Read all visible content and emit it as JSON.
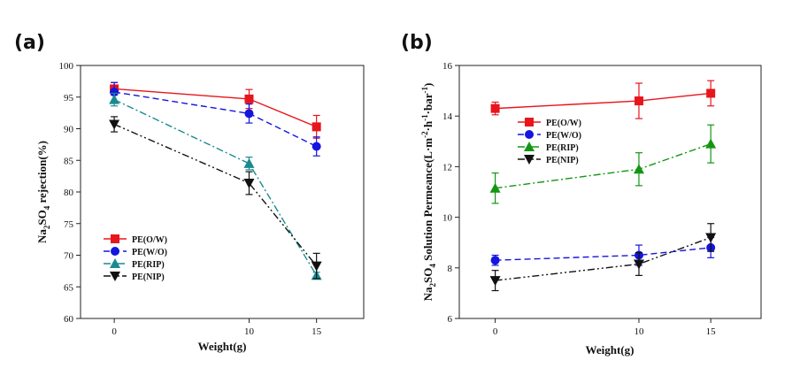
{
  "chart_data": [
    {
      "type": "line",
      "panel": "(a)",
      "title": "",
      "xlabel": "Weight(g)",
      "ylabel": "Na2SO4 rejection(%)",
      "ylabel_parts": {
        "pre": "Na",
        "sub1": "2",
        "mid": "SO",
        "sub2": "4",
        "post": " rejection(%)"
      },
      "x": [
        0,
        10,
        15
      ],
      "xticks": [
        0,
        10,
        15
      ],
      "xlim": [
        -2.5,
        18.5
      ],
      "ylim": [
        60,
        100
      ],
      "yticks": [
        60,
        65,
        70,
        75,
        80,
        85,
        90,
        95,
        100
      ],
      "grid": false,
      "legend_position": "lower-left",
      "series": [
        {
          "name": "PE(O/W)",
          "values": [
            96.3,
            94.7,
            90.3
          ],
          "errors": [
            1.0,
            1.5,
            1.8
          ],
          "color": "#e8151c",
          "marker": "square",
          "dash": "solid"
        },
        {
          "name": "PE(W/O)",
          "values": [
            95.8,
            92.4,
            87.2
          ],
          "errors": [
            1.5,
            1.5,
            1.5
          ],
          "color": "#1515e0",
          "marker": "circle",
          "dash": "dashed"
        },
        {
          "name": "PE(RIP)",
          "values": [
            94.6,
            84.5,
            66.8
          ],
          "errors": [
            1.0,
            1.0,
            0.5
          ],
          "color": "#1a8a90",
          "marker": "triangle-up",
          "dash": "dashdot"
        },
        {
          "name": "PE(NIP)",
          "values": [
            90.7,
            81.4,
            68.3
          ],
          "errors": [
            1.2,
            1.8,
            2.0
          ],
          "color": "#111111",
          "marker": "triangle-down",
          "dash": "dashdotdot"
        }
      ]
    },
    {
      "type": "line",
      "panel": "(b)",
      "title": "",
      "xlabel": "Weight(g)",
      "ylabel": "Na2SO4 Solution Permeance(L·m-2·h-1·bar-1)",
      "ylabel_parts": {
        "pre": "Na",
        "sub1": "2",
        "mid": "SO",
        "sub2": "4",
        "post": " Solution Permeance(L·m",
        "sup1": "-2",
        "mid2": "·h",
        "sup2": "-1",
        "mid3": "·bar",
        "sup3": "-1",
        "end": ")"
      },
      "x": [
        0,
        10,
        15
      ],
      "xticks": [
        0,
        10,
        15
      ],
      "xlim": [
        -2.5,
        18.5
      ],
      "ylim": [
        6,
        16
      ],
      "yticks": [
        6,
        8,
        10,
        12,
        14,
        16
      ],
      "grid": false,
      "legend_position": "center-left",
      "series": [
        {
          "name": "PE(O/W)",
          "values": [
            14.3,
            14.6,
            14.9
          ],
          "errors": [
            0.25,
            0.7,
            0.5
          ],
          "color": "#e8151c",
          "marker": "square",
          "dash": "solid"
        },
        {
          "name": "PE(W/O)",
          "values": [
            8.3,
            8.5,
            8.8
          ],
          "errors": [
            0.2,
            0.4,
            0.4
          ],
          "color": "#1515e0",
          "marker": "circle",
          "dash": "dashed"
        },
        {
          "name": "PE(RIP)",
          "values": [
            11.15,
            11.9,
            12.9
          ],
          "errors": [
            0.6,
            0.65,
            0.75
          ],
          "color": "#149614",
          "marker": "triangle-up",
          "dash": "dashdot"
        },
        {
          "name": "PE(NIP)",
          "values": [
            7.5,
            8.15,
            9.2
          ],
          "errors": [
            0.4,
            0.45,
            0.55
          ],
          "color": "#111111",
          "marker": "triangle-down",
          "dash": "dashdotdot"
        }
      ]
    }
  ]
}
